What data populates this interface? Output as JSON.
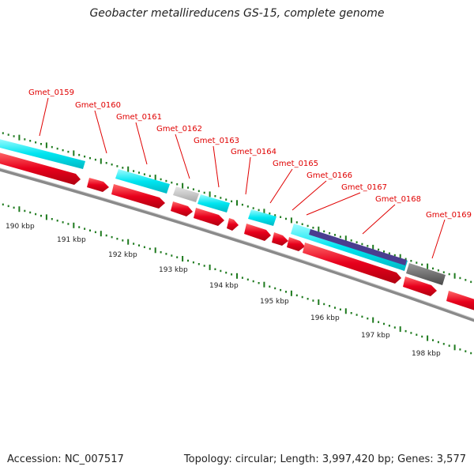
{
  "title": "Geobacter metallireducens GS-15, complete genome",
  "accession": "Accession: NC_007517",
  "stats": "Topology: circular; Length: 3,997,420 bp; Genes: 3,577",
  "colors": {
    "forward_cds": "#00e5f0",
    "reverse_cds": "#e8001c",
    "misc_feature": "#bdbdbd",
    "dark_feature": "#6a6a6a",
    "overlay_bar": "#4b3d8f",
    "label": "#e00000",
    "tick": "#1e7a1e",
    "backbone": "#8a8a8a"
  },
  "gene_labels": [
    {
      "id": "Gmet_0159"
    },
    {
      "id": "Gmet_0160"
    },
    {
      "id": "Gmet_0161"
    },
    {
      "id": "Gmet_0162"
    },
    {
      "id": "Gmet_0163"
    },
    {
      "id": "Gmet_0164"
    },
    {
      "id": "Gmet_0165"
    },
    {
      "id": "Gmet_0166"
    },
    {
      "id": "Gmet_0167"
    },
    {
      "id": "Gmet_0168"
    },
    {
      "id": "Gmet_0169"
    }
  ],
  "kbp_labels": [
    "190 kbp",
    "191 kbp",
    "192 kbp",
    "193 kbp",
    "194 kbp",
    "195 kbp",
    "196 kbp",
    "197 kbp",
    "198 kbp"
  ]
}
